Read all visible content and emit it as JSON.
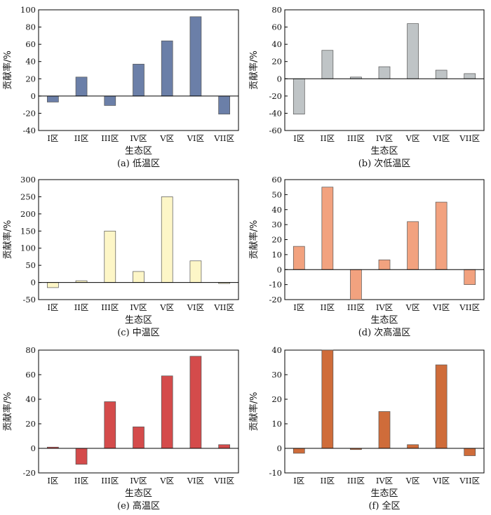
{
  "figure": {
    "x_axis_title": "生态区",
    "y_axis_title": "贡献率/%"
  },
  "chart_data": [
    {
      "id": "a",
      "type": "bar",
      "caption": "(a) 低温区",
      "xlabel": "生态区",
      "ylabel": "贡献率/%",
      "categories": [
        "I区",
        "II区",
        "III区",
        "IV区",
        "V区",
        "VI区",
        "VII区"
      ],
      "values": [
        -7,
        22,
        -11,
        37,
        64,
        92,
        -21
      ],
      "ylim": [
        -40,
        100
      ],
      "yticks": [
        -40,
        -20,
        0,
        20,
        40,
        60,
        80,
        100
      ],
      "color": "#6b7fa8"
    },
    {
      "id": "b",
      "type": "bar",
      "caption": "(b) 次低温区",
      "xlabel": "生态区",
      "ylabel": "贡献率/%",
      "categories": [
        "I区",
        "II区",
        "III区",
        "IV区",
        "V区",
        "VI区",
        "VII区"
      ],
      "values": [
        -41,
        33,
        2,
        14,
        64,
        10,
        6
      ],
      "ylim": [
        -60,
        80
      ],
      "yticks": [
        -60,
        -40,
        -20,
        0,
        20,
        40,
        60,
        80
      ],
      "color": "#bfc4c6"
    },
    {
      "id": "c",
      "type": "bar",
      "caption": "(c) 中温区",
      "xlabel": "生态区",
      "ylabel": "贡献率/%",
      "categories": [
        "I区",
        "II区",
        "III区",
        "IV区",
        "V区",
        "VI区",
        "VII区"
      ],
      "values": [
        -15,
        5,
        150,
        32,
        250,
        63,
        -3
      ],
      "ylim": [
        -50,
        300
      ],
      "yticks": [
        -50,
        0,
        50,
        100,
        150,
        200,
        250,
        300
      ],
      "color": "#fdf6c7"
    },
    {
      "id": "d",
      "type": "bar",
      "caption": "(d) 次高温区",
      "xlabel": "生态区",
      "ylabel": "贡献率/%",
      "categories": [
        "I区",
        "II区",
        "III区",
        "IV区",
        "V区",
        "VI区",
        "VII区"
      ],
      "values": [
        15.5,
        55,
        -20,
        6.5,
        32,
        45,
        -10
      ],
      "ylim": [
        -20,
        60
      ],
      "yticks": [
        -20,
        -10,
        0,
        10,
        20,
        30,
        40,
        50,
        60
      ],
      "color": "#f2a27f"
    },
    {
      "id": "e",
      "type": "bar",
      "caption": "(e) 高温区",
      "xlabel": "生态区",
      "ylabel": "贡献率/%",
      "categories": [
        "I区",
        "II区",
        "III区",
        "IV区",
        "V区",
        "VI区",
        "VII区"
      ],
      "values": [
        1,
        -13,
        38,
        17.5,
        59,
        75,
        3
      ],
      "ylim": [
        -20,
        80
      ],
      "yticks": [
        -20,
        0,
        20,
        40,
        60,
        80
      ],
      "color": "#d44b4b"
    },
    {
      "id": "f",
      "type": "bar",
      "caption": "(f) 全区",
      "xlabel": "生态区",
      "ylabel": "贡献率/%",
      "categories": [
        "I区",
        "II区",
        "III区",
        "IV区",
        "V区",
        "VI区",
        "VII区"
      ],
      "values": [
        -2,
        40,
        -0.5,
        15,
        1.5,
        34,
        -3
      ],
      "ylim": [
        -10,
        40
      ],
      "yticks": [
        -10,
        0,
        10,
        20,
        30,
        40
      ],
      "color": "#cf6c3a"
    }
  ]
}
